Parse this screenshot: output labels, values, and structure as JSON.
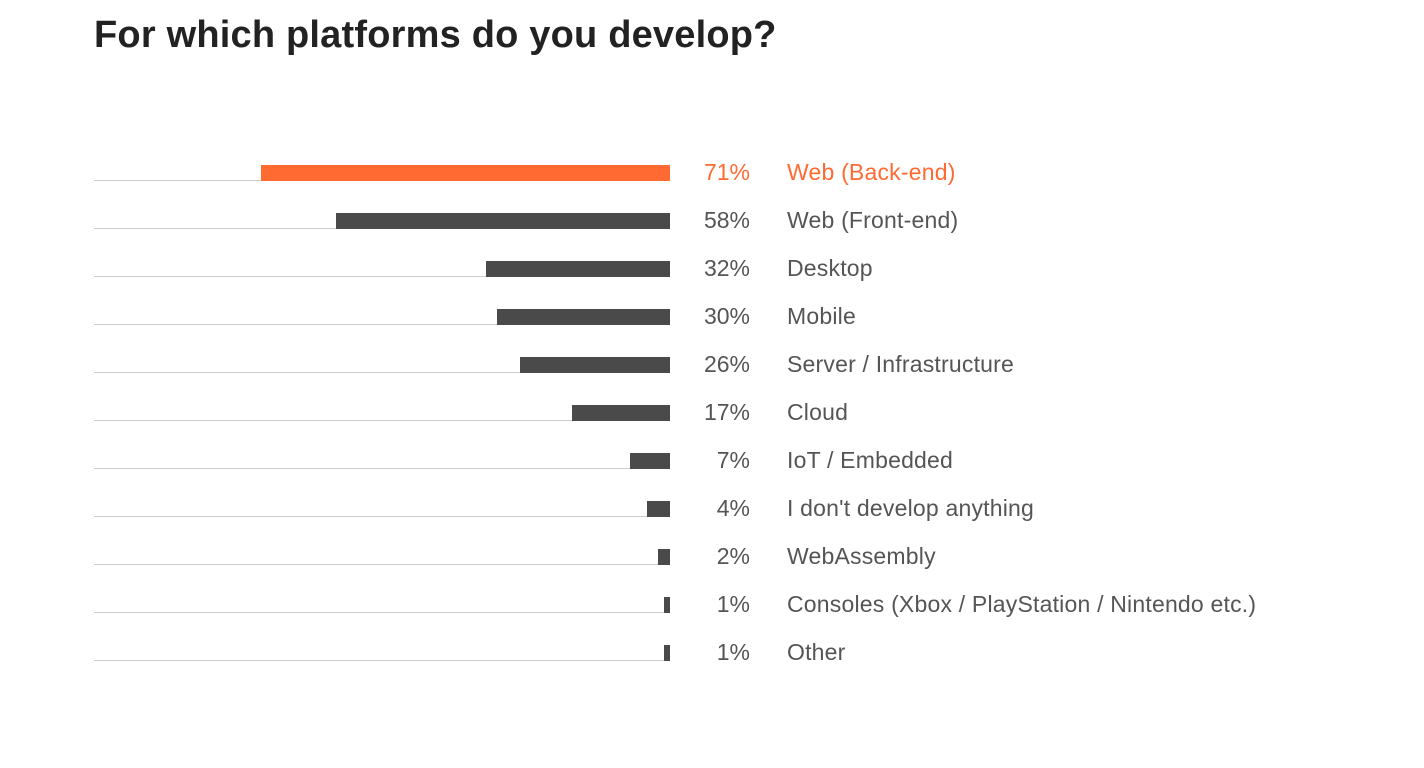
{
  "chart_data": {
    "type": "bar",
    "orientation": "horizontal",
    "title": "For which platforms do you develop?",
    "xlim": [
      0,
      71
    ],
    "highlight_index": 0,
    "colors": {
      "highlight": "#ff6a33",
      "bar": "#4a4a4a",
      "baseline": "#cccccc",
      "text": "#555555",
      "title": "#222222"
    },
    "categories": [
      "Web (Back-end)",
      "Web (Front-end)",
      "Desktop",
      "Mobile",
      "Server / Infrastructure",
      "Cloud",
      "IoT / Embedded",
      "I don't develop anything",
      "WebAssembly",
      "Consoles (Xbox / PlayStation / Nintendo etc.)",
      "Other"
    ],
    "values": [
      71,
      58,
      32,
      30,
      26,
      17,
      7,
      4,
      2,
      1,
      1
    ],
    "value_labels": [
      "71%",
      "58%",
      "32%",
      "30%",
      "26%",
      "17%",
      "7%",
      "4%",
      "2%",
      "1%",
      "1%"
    ]
  }
}
